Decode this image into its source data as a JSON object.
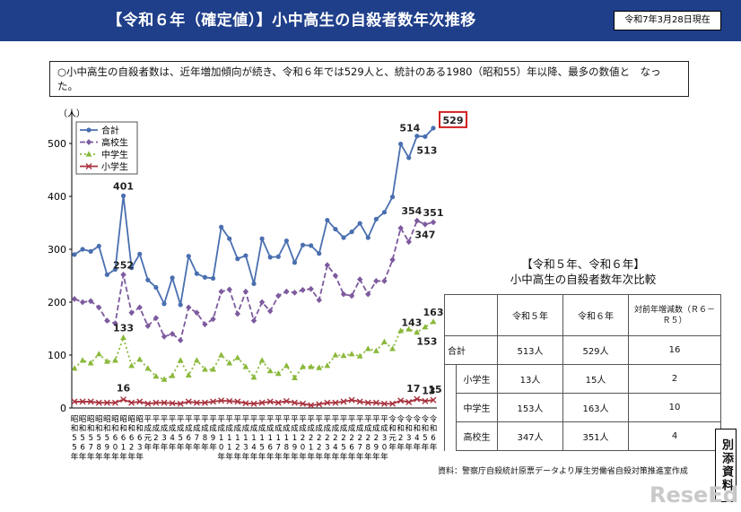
{
  "header": {
    "title": "【令和６年（確定値）】小中高生の自殺者数年次推移",
    "as_of": "令和7年3月28日現在"
  },
  "summary": "○小中高生の自殺者数は、近年増加傾向が続き、令和６年では529人と、統計のある1980（昭和55）年以降、最多の数値と　なった。",
  "chart_data": {
    "type": "line",
    "ylabel": "（人）",
    "ylim": [
      0,
      500
    ],
    "yticks": [
      0,
      100,
      200,
      300,
      400,
      500
    ],
    "grid": false,
    "legend": "top-left",
    "x": [
      "昭和55年",
      "昭和56年",
      "昭和57年",
      "昭和58年",
      "昭和59年",
      "昭和60年",
      "昭和61年",
      "昭和62年",
      "昭和63年",
      "平成元年",
      "平成2年",
      "平成3年",
      "平成4年",
      "平成5年",
      "平成6年",
      "平成7年",
      "平成8年",
      "平成9年",
      "平成10年",
      "平成11年",
      "平成12年",
      "平成13年",
      "平成14年",
      "平成15年",
      "平成16年",
      "平成17年",
      "平成18年",
      "平成19年",
      "平成20年",
      "平成21年",
      "平成22年",
      "平成23年",
      "平成24年",
      "平成25年",
      "平成26年",
      "平成27年",
      "平成28年",
      "平成29年",
      "平成30年",
      "令和元年",
      "令和2年",
      "令和3年",
      "令和4年",
      "令和5年",
      "令和6年"
    ],
    "x_tick_labels": [
      [
        "昭",
        "和",
        "5",
        "5",
        "年"
      ],
      [
        "昭",
        "和",
        "5",
        "6",
        "年"
      ],
      [
        "昭",
        "和",
        "5",
        "7",
        "年"
      ],
      [
        "昭",
        "和",
        "5",
        "8",
        "年"
      ],
      [
        "昭",
        "和",
        "5",
        "9",
        "年"
      ],
      [
        "昭",
        "和",
        "6",
        "0",
        "年"
      ],
      [
        "昭",
        "和",
        "6",
        "1",
        "年"
      ],
      [
        "昭",
        "和",
        "6",
        "2",
        "年"
      ],
      [
        "昭",
        "和",
        "6",
        "3",
        "年"
      ],
      [
        "平",
        "成",
        "元",
        "年",
        ""
      ],
      [
        "平",
        "成",
        "2",
        "年",
        ""
      ],
      [
        "平",
        "成",
        "3",
        "年",
        ""
      ],
      [
        "平",
        "成",
        "4",
        "年",
        ""
      ],
      [
        "平",
        "成",
        "5",
        "年",
        ""
      ],
      [
        "平",
        "成",
        "6",
        "年",
        ""
      ],
      [
        "平",
        "成",
        "7",
        "年",
        ""
      ],
      [
        "平",
        "成",
        "8",
        "年",
        ""
      ],
      [
        "平",
        "成",
        "9",
        "年",
        ""
      ],
      [
        "平",
        "成",
        "1",
        "0",
        "年"
      ],
      [
        "平",
        "成",
        "1",
        "1",
        "年"
      ],
      [
        "平",
        "成",
        "1",
        "2",
        "年"
      ],
      [
        "平",
        "成",
        "1",
        "3",
        "年"
      ],
      [
        "平",
        "成",
        "1",
        "4",
        "年"
      ],
      [
        "平",
        "成",
        "1",
        "5",
        "年"
      ],
      [
        "平",
        "成",
        "1",
        "6",
        "年"
      ],
      [
        "平",
        "成",
        "1",
        "7",
        "年"
      ],
      [
        "平",
        "成",
        "1",
        "8",
        "年"
      ],
      [
        "平",
        "成",
        "1",
        "9",
        "年"
      ],
      [
        "平",
        "成",
        "2",
        "0",
        "年"
      ],
      [
        "平",
        "成",
        "2",
        "1",
        "年"
      ],
      [
        "平",
        "成",
        "2",
        "2",
        "年"
      ],
      [
        "平",
        "成",
        "2",
        "3",
        "年"
      ],
      [
        "平",
        "成",
        "2",
        "4",
        "年"
      ],
      [
        "平",
        "成",
        "2",
        "5",
        "年"
      ],
      [
        "平",
        "成",
        "2",
        "6",
        "年"
      ],
      [
        "平",
        "成",
        "2",
        "7",
        "年"
      ],
      [
        "平",
        "成",
        "2",
        "8",
        "年"
      ],
      [
        "平",
        "成",
        "2",
        "9",
        "年"
      ],
      [
        "平",
        "成",
        "3",
        "0",
        "年"
      ],
      [
        "令",
        "和",
        "元",
        "年",
        ""
      ],
      [
        "令",
        "和",
        "2",
        "年",
        ""
      ],
      [
        "令",
        "和",
        "3",
        "年",
        ""
      ],
      [
        "令",
        "和",
        "4",
        "年",
        ""
      ],
      [
        "令",
        "和",
        "5",
        "年",
        ""
      ],
      [
        "令",
        "和",
        "6",
        "年",
        ""
      ]
    ],
    "series": [
      {
        "name": "合計",
        "color": "#4a6fb0",
        "marker": "circle",
        "dash": "",
        "values": [
          290,
          300,
          296,
          306,
          252,
          262,
          401,
          265,
          291,
          242,
          228,
          197,
          246,
          195,
          287,
          254,
          247,
          245,
          342,
          320,
          282,
          288,
          235,
          320,
          285,
          286,
          316,
          275,
          308,
          307,
          292,
          355,
          338,
          322,
          333,
          349,
          322,
          357,
          370,
          399,
          499,
          473,
          514,
          513,
          529
        ]
      },
      {
        "name": "高校生",
        "color": "#7d5a9e",
        "marker": "diamond",
        "dash": "6,3",
        "values": [
          206,
          200,
          202,
          190,
          165,
          160,
          252,
          180,
          190,
          155,
          170,
          135,
          140,
          128,
          190,
          180,
          158,
          168,
          220,
          224,
          178,
          220,
          165,
          200,
          183,
          212,
          220,
          218,
          223,
          225,
          204,
          270,
          250,
          215,
          212,
          243,
          215,
          240,
          240,
          280,
          340,
          314,
          354,
          347,
          351
        ]
      },
      {
        "name": "中学生",
        "color": "#8ab83a",
        "marker": "triangle",
        "dash": "2,3",
        "values": [
          75,
          90,
          85,
          102,
          88,
          90,
          133,
          80,
          92,
          75,
          60,
          54,
          61,
          90,
          62,
          90,
          73,
          73,
          100,
          85,
          95,
          78,
          58,
          90,
          70,
          65,
          80,
          57,
          78,
          78,
          76,
          80,
          100,
          99,
          102,
          98,
          112,
          108,
          125,
          112,
          146,
          149,
          143,
          153,
          163
        ]
      },
      {
        "name": "小学生",
        "color": "#a8323e",
        "marker": "x",
        "dash": "",
        "values": [
          12,
          12,
          12,
          10,
          10,
          10,
          16,
          10,
          12,
          8,
          10,
          10,
          9,
          8,
          12,
          10,
          10,
          12,
          14,
          13,
          12,
          9,
          8,
          10,
          12,
          10,
          13,
          10,
          8,
          5,
          7,
          10,
          10,
          12,
          15,
          12,
          10,
          10,
          8,
          8,
          14,
          11,
          17,
          13,
          15
        ]
      }
    ],
    "data_labels": [
      {
        "series": "合計",
        "index": 6,
        "text": "401"
      },
      {
        "series": "高校生",
        "index": 6,
        "text": "252"
      },
      {
        "series": "中学生",
        "index": 6,
        "text": "133"
      },
      {
        "series": "小学生",
        "index": 6,
        "text": "16"
      },
      {
        "series": "合計",
        "index": 42,
        "text": "514"
      },
      {
        "series": "合計",
        "index": 43,
        "text": "513"
      },
      {
        "series": "合計",
        "index": 44,
        "text": "529",
        "boxed": true
      },
      {
        "series": "高校生",
        "index": 42,
        "text": "354"
      },
      {
        "series": "高校生",
        "index": 43,
        "text": "347"
      },
      {
        "series": "高校生",
        "index": 44,
        "text": "351"
      },
      {
        "series": "中学生",
        "index": 42,
        "text": "143"
      },
      {
        "series": "中学生",
        "index": 43,
        "text": "153"
      },
      {
        "series": "中学生",
        "index": 44,
        "text": "163"
      },
      {
        "series": "小学生",
        "index": 42,
        "text": "17"
      },
      {
        "series": "小学生",
        "index": 43,
        "text": "13"
      },
      {
        "series": "小学生",
        "index": 44,
        "text": "15"
      }
    ]
  },
  "comparison": {
    "title_line1": "【令和５年、令和６年】",
    "title_line2": "小中高生の自殺者数年次比較",
    "headers": [
      "令和５年",
      "令和６年",
      "対前年増減数（Ｒ６－Ｒ５）"
    ],
    "rows": [
      {
        "label": "合計",
        "r5": "513人",
        "r6": "529人",
        "diff": "16"
      },
      {
        "label": "小学生",
        "r5": "13人",
        "r6": "15人",
        "diff": "2"
      },
      {
        "label": "中学生",
        "r5": "153人",
        "r6": "163人",
        "diff": "10"
      },
      {
        "label": "高校生",
        "r5": "347人",
        "r6": "351人",
        "diff": "4"
      }
    ]
  },
  "source": "資料：警察庁自殺統計原票データより厚生労働省自殺対策推進室作成",
  "side_tab": "別添資料",
  "watermark": "ReseEd"
}
